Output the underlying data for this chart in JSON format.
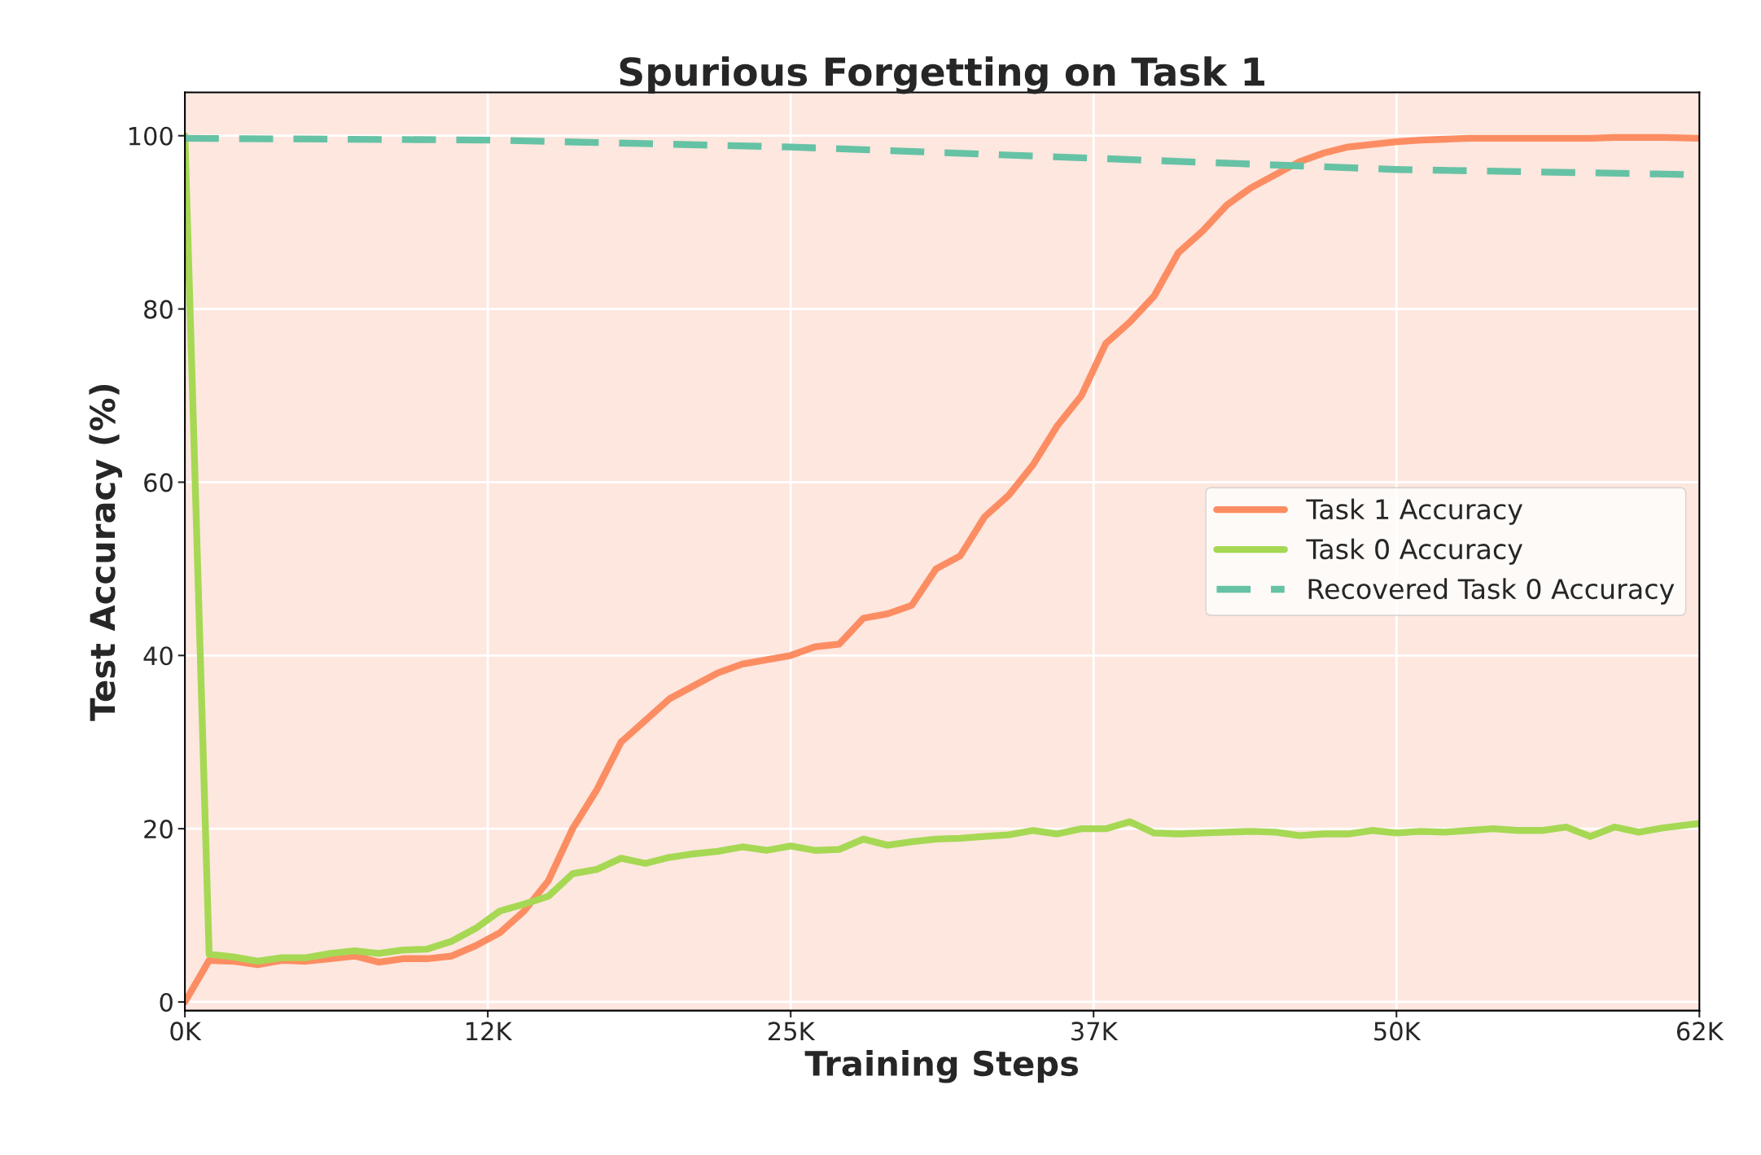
{
  "chart_data": {
    "type": "line",
    "title": "Spurious Forgetting on Task 1",
    "xlabel": "Training Steps",
    "ylabel": "Test Accuracy (%)",
    "xlim": [
      0,
      62500
    ],
    "xticks": [
      {
        "value": 0,
        "label": "0K"
      },
      {
        "value": 12500,
        "label": "12K"
      },
      {
        "value": 25000,
        "label": "25K"
      },
      {
        "value": 37500,
        "label": "37K"
      },
      {
        "value": 50000,
        "label": "50K"
      },
      {
        "value": 62500,
        "label": "62K"
      }
    ],
    "ylim": [
      -1,
      105
    ],
    "yticks": [
      0,
      20,
      40,
      60,
      80,
      100
    ],
    "grid": true,
    "legend": "right",
    "marker": "none",
    "series": [
      {
        "name": "Task 1 Accuracy",
        "color": "#fc8d62",
        "line_style": "solid",
        "x": [
          0,
          1000,
          2000,
          3000,
          4000,
          5000,
          6000,
          7000,
          8000,
          9000,
          10000,
          11000,
          12000,
          13000,
          14000,
          15000,
          16000,
          17000,
          18000,
          19000,
          20000,
          21000,
          22000,
          23000,
          24000,
          25000,
          26000,
          27000,
          28000,
          29000,
          30000,
          31000,
          32000,
          33000,
          34000,
          35000,
          36000,
          37000,
          38000,
          39000,
          40000,
          41000,
          42000,
          43000,
          44000,
          45000,
          46000,
          47000,
          48000,
          49000,
          50000,
          51000,
          52000,
          53000,
          54000,
          55000,
          56000,
          57000,
          58000,
          59000,
          60000,
          61000,
          62500
        ],
        "values": [
          0,
          4.8,
          4.7,
          4.3,
          4.8,
          4.7,
          5,
          5.3,
          4.6,
          5,
          5,
          5.3,
          6.5,
          8,
          10.5,
          14,
          20,
          24.5,
          30,
          32.5,
          35,
          36.5,
          38,
          39,
          39.5,
          40,
          41,
          41.3,
          44.3,
          44.8,
          45.8,
          50,
          51.5,
          56,
          58.5,
          62,
          66.5,
          70,
          76,
          78.5,
          81.5,
          86.5,
          89,
          92,
          94,
          95.5,
          97,
          98,
          98.7,
          99,
          99.3,
          99.5,
          99.6,
          99.7,
          99.7,
          99.7,
          99.7,
          99.7,
          99.7,
          99.8,
          99.8,
          99.8,
          99.7
        ]
      },
      {
        "name": "Task 0 Accuracy",
        "color": "#a6d854",
        "line_style": "solid",
        "x": [
          0,
          1000,
          2000,
          3000,
          4000,
          5000,
          6000,
          7000,
          8000,
          9000,
          10000,
          11000,
          12000,
          13000,
          14000,
          15000,
          16000,
          17000,
          18000,
          19000,
          20000,
          21000,
          22000,
          23000,
          24000,
          25000,
          26000,
          27000,
          28000,
          29000,
          30000,
          31000,
          32000,
          33000,
          34000,
          35000,
          36000,
          37000,
          38000,
          39000,
          40000,
          41000,
          42000,
          43000,
          44000,
          45000,
          46000,
          47000,
          48000,
          49000,
          50000,
          51000,
          52000,
          53000,
          54000,
          55000,
          56000,
          57000,
          58000,
          59000,
          60000,
          61000,
          62500
        ],
        "values": [
          100,
          5.5,
          5.2,
          4.7,
          5.1,
          5.1,
          5.6,
          5.9,
          5.6,
          6,
          6.1,
          7,
          8.5,
          10.5,
          11.3,
          12.2,
          14.8,
          15.3,
          16.6,
          16,
          16.7,
          17.1,
          17.4,
          17.9,
          17.5,
          18,
          17.5,
          17.6,
          18.8,
          18.1,
          18.5,
          18.8,
          18.9,
          19.1,
          19.3,
          19.8,
          19.4,
          20,
          20,
          20.8,
          19.5,
          19.4,
          19.5,
          19.6,
          19.7,
          19.6,
          19.2,
          19.4,
          19.4,
          19.8,
          19.5,
          19.7,
          19.6,
          19.8,
          20,
          19.8,
          19.8,
          20.2,
          19.1,
          20.2,
          19.6,
          20.1,
          20.6
        ]
      },
      {
        "name": "Recovered Task 0 Accuracy",
        "color": "#66c2a5",
        "line_style": "dashed",
        "x": [
          0,
          12500,
          25000,
          37500,
          50000,
          62500
        ],
        "values": [
          99.7,
          99.5,
          98.7,
          97.4,
          96.1,
          95.5
        ]
      }
    ]
  }
}
